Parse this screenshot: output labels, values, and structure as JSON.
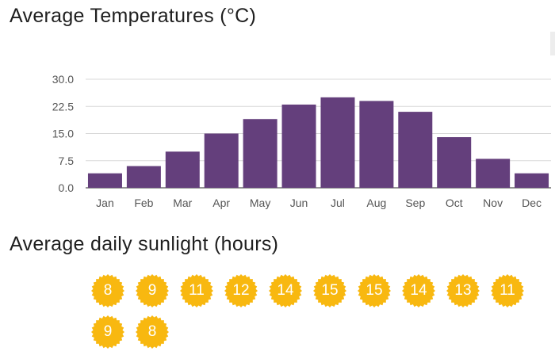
{
  "page": {
    "temperature_title": "Average Temperatures (°C)",
    "sunlight_title": "Average daily sunlight (hours)"
  },
  "colors": {
    "bar": "#643f7c",
    "sun": "#f8b810",
    "grid": "#d8d8d8",
    "axis": "#555555"
  },
  "chart_data": {
    "type": "bar",
    "categories": [
      "Jan",
      "Feb",
      "Mar",
      "Apr",
      "May",
      "Jun",
      "Jul",
      "Aug",
      "Sep",
      "Oct",
      "Nov",
      "Dec"
    ],
    "values": [
      4,
      6,
      10,
      15,
      19,
      23,
      25,
      24,
      21,
      14,
      8,
      4
    ],
    "title": "Average Temperatures (°C)",
    "xlabel": "",
    "ylabel": "",
    "ylim": [
      0,
      30
    ],
    "yticks": [
      "0.0",
      "7.5",
      "15.0",
      "22.5",
      "30.0"
    ],
    "grid": true,
    "legend": "none"
  },
  "sunlight": {
    "icon": "sun-badge-icon",
    "hours": [
      "8",
      "9",
      "11",
      "12",
      "14",
      "15",
      "15",
      "14",
      "13",
      "11",
      "9",
      "8"
    ]
  }
}
